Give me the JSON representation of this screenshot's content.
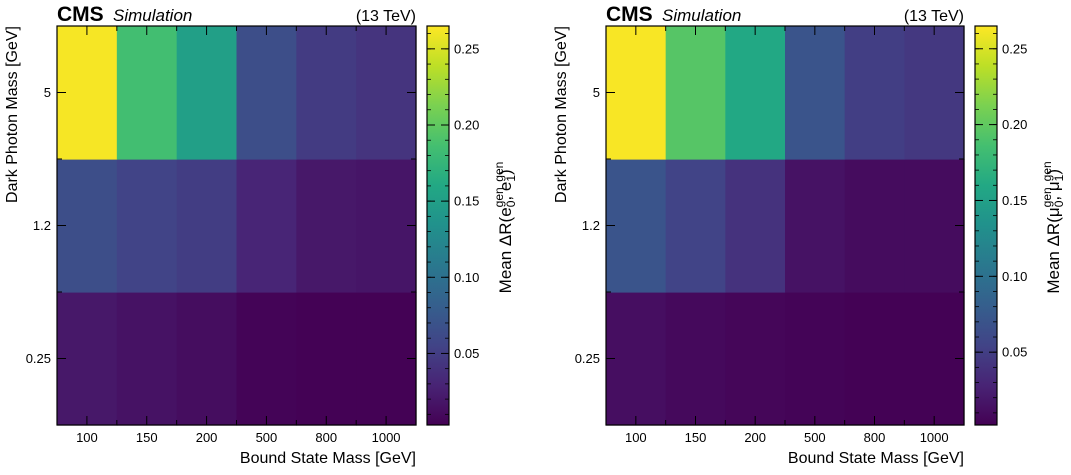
{
  "figure": {
    "colormap": "viridis"
  },
  "chart_data": [
    {
      "type": "heatmap",
      "header": {
        "experiment": "CMS",
        "tag": "Simulation",
        "energy": "(13 TeV)"
      },
      "xlabel": "Bound State Mass [GeV]",
      "ylabel": "Dark Photon Mass [GeV]",
      "x_categories": [
        "100",
        "150",
        "200",
        "500",
        "800",
        "1000"
      ],
      "y_categories": [
        "0.25",
        "1.2",
        "5"
      ],
      "values": [
        [
          0.02,
          0.016,
          0.012,
          0.005,
          0.004,
          0.004
        ],
        [
          0.065,
          0.055,
          0.05,
          0.03,
          0.02,
          0.018
        ],
        [
          0.262,
          0.185,
          0.15,
          0.065,
          0.048,
          0.042
        ]
      ],
      "colorbar": {
        "label_prefix": "Mean ΔR(",
        "particle": "e",
        "sub0": "0",
        "sub1": "1",
        "sup": "gen",
        "range": [
          0.003,
          0.265
        ],
        "ticks": [
          "0.05",
          "0.10",
          "0.15",
          "0.20",
          "0.25"
        ]
      }
    },
    {
      "type": "heatmap",
      "header": {
        "experiment": "CMS",
        "tag": "Simulation",
        "energy": "(13 TeV)"
      },
      "xlabel": "Bound State Mass [GeV]",
      "ylabel": "Dark Photon Mass [GeV]",
      "x_categories": [
        "100",
        "150",
        "200",
        "500",
        "800",
        "1000"
      ],
      "y_categories": [
        "0.25",
        "1.2",
        "5"
      ],
      "values": [
        [
          0.012,
          0.008,
          0.006,
          0.004,
          0.003,
          0.003
        ],
        [
          0.07,
          0.055,
          0.04,
          0.015,
          0.01,
          0.01
        ],
        [
          0.263,
          0.195,
          0.16,
          0.07,
          0.05,
          0.045
        ]
      ],
      "colorbar": {
        "label_prefix": "Mean ΔR(",
        "particle": "μ",
        "sub0": "0",
        "sub1": "1",
        "sup": "gen",
        "range": [
          0.002,
          0.265
        ],
        "ticks": [
          "0.05",
          "0.10",
          "0.15",
          "0.20",
          "0.25"
        ]
      }
    }
  ]
}
